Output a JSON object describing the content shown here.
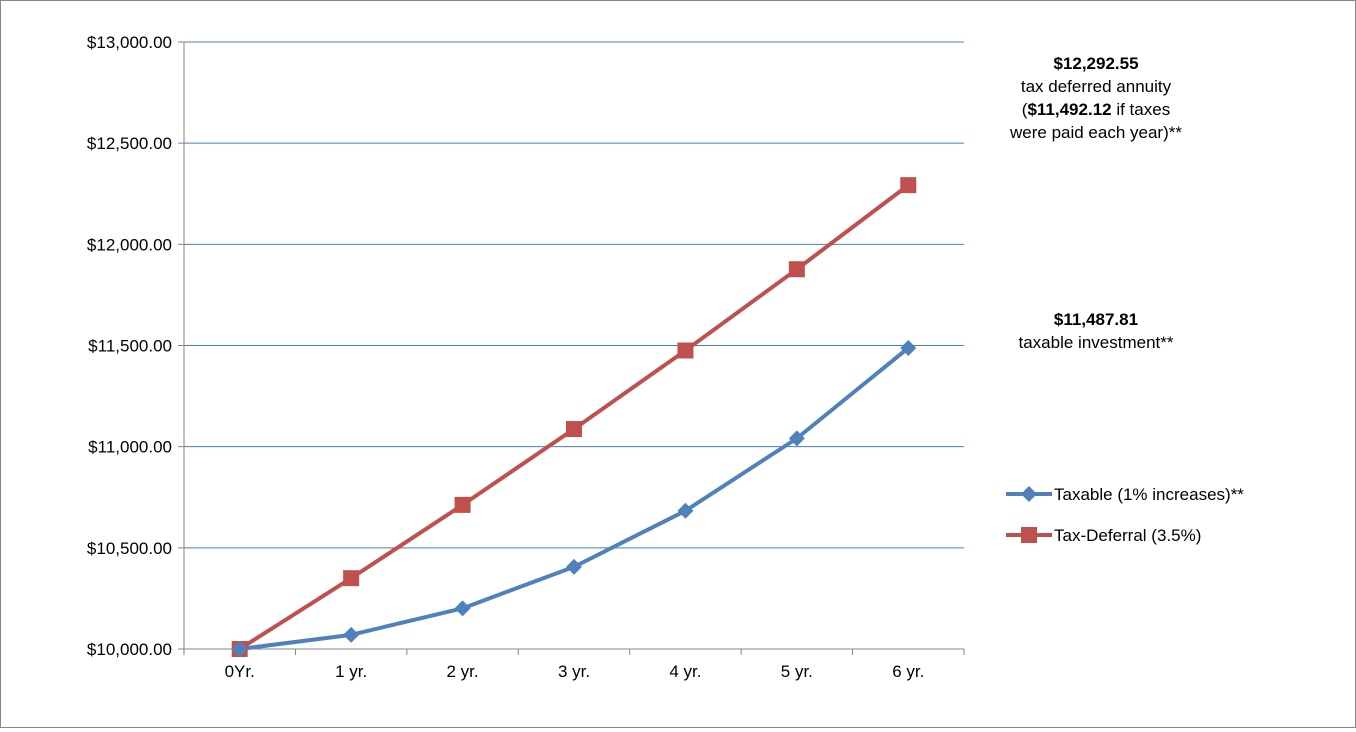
{
  "chart_data": {
    "type": "line",
    "title": "",
    "xlabel": "",
    "ylabel": "",
    "categories": [
      "0Yr.",
      "1 yr.",
      "2 yr.",
      "3 yr.",
      "4 yr.",
      "5 yr.",
      "6 yr."
    ],
    "ylim": [
      10000,
      13000
    ],
    "y_ticks": [
      10000,
      10500,
      11000,
      11500,
      12000,
      12500,
      13000
    ],
    "y_tick_labels": [
      "$10,000.00",
      "$10,500.00",
      "$11,000.00",
      "$11,500.00",
      "$12,000.00",
      "$12,500.00",
      "$13,000.00"
    ],
    "grid": true,
    "legend_position": "right",
    "series": [
      {
        "name": "Taxable (1% increases)**",
        "color": "#4F81BD",
        "marker": "diamond",
        "values": [
          10000.0,
          10070.0,
          10201.0,
          10406.0,
          10683.0,
          11041.0,
          11487.81
        ]
      },
      {
        "name": "Tax-Deferral (3.5%)",
        "color": "#C0504D",
        "marker": "square",
        "values": [
          10000.0,
          10350.0,
          10712.25,
          11087.18,
          11475.23,
          11876.86,
          12292.55
        ]
      }
    ],
    "annotations": [
      {
        "series": 1,
        "lines": [
          {
            "parts": [
              {
                "text": "$12,292.55",
                "bold": true
              }
            ]
          },
          {
            "parts": [
              {
                "text": "tax deferred annuity",
                "bold": false
              }
            ]
          },
          {
            "parts": [
              {
                "text": "(",
                "bold": false
              },
              {
                "text": "$11,492.12",
                "bold": true
              },
              {
                "text": " if taxes",
                "bold": false
              }
            ]
          },
          {
            "parts": [
              {
                "text": "were paid each year)**",
                "bold": false
              }
            ]
          }
        ]
      },
      {
        "series": 0,
        "lines": [
          {
            "parts": [
              {
                "text": "$11,487.81",
                "bold": true
              }
            ]
          },
          {
            "parts": [
              {
                "text": "taxable investment**",
                "bold": false
              }
            ]
          }
        ]
      }
    ]
  }
}
